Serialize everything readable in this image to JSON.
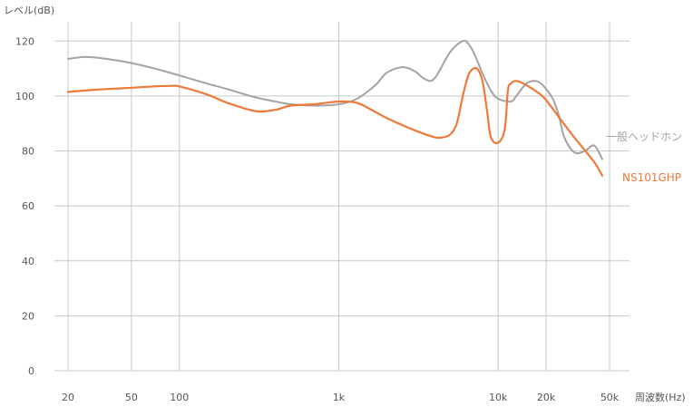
{
  "chart_data": {
    "type": "line",
    "title": "",
    "ylabel": "レベル(dB)",
    "xlabel": "周波数(Hz)",
    "ylim": [
      0,
      130
    ],
    "y_ticks": [
      0,
      20,
      40,
      60,
      80,
      100,
      120
    ],
    "y_tick_labels": [
      "0",
      "20",
      "40",
      "60",
      "80",
      "100",
      "120"
    ],
    "x_scale": "log",
    "xlim": [
      20,
      50000
    ],
    "x_ticks": [
      20,
      50,
      100,
      1000,
      10000,
      20000,
      50000
    ],
    "x_tick_labels": [
      "20",
      "50",
      "100",
      "1k",
      "10k",
      "20k",
      "50k"
    ],
    "x_gridlines": [
      20,
      50,
      100,
      1000,
      10000,
      20000,
      50000
    ],
    "grid": true,
    "legend": "inline labels at right end of lines",
    "series": [
      {
        "name": "一般ヘッドホン",
        "color": "#a3a3a3",
        "x": [
          20,
          25,
          30,
          40,
          50,
          70,
          100,
          150,
          200,
          300,
          400,
          500,
          700,
          1000,
          1300,
          1700,
          2000,
          2500,
          3000,
          3500,
          4000,
          5000,
          6000,
          6500,
          7000,
          7500,
          8000,
          9000,
          10000,
          12000,
          13000,
          15000,
          17000,
          19000,
          22000,
          24000,
          26000,
          30000,
          35000,
          40000,
          45000
        ],
        "values": [
          113.5,
          114.2,
          114,
          113,
          112,
          110,
          107.5,
          104.5,
          102.5,
          99.5,
          98,
          97,
          96.5,
          97,
          99,
          104,
          108.5,
          110.5,
          109,
          106,
          106.5,
          116,
          120,
          119,
          116,
          112,
          108,
          102,
          99,
          98,
          100,
          104.5,
          105.5,
          104,
          99,
          93,
          85,
          79.5,
          80,
          82,
          77
        ]
      },
      {
        "name": "NS101GHP",
        "color": "#ef7938",
        "x": [
          20,
          30,
          50,
          70,
          90,
          100,
          150,
          200,
          300,
          400,
          500,
          700,
          1000,
          1300,
          1600,
          2000,
          3000,
          4000,
          4500,
          5000,
          5500,
          6000,
          6500,
          7000,
          7500,
          8000,
          8500,
          9000,
          10000,
          11000,
          11500,
          12000,
          13000,
          15000,
          18000,
          20000,
          25000,
          30000,
          40000,
          45000
        ],
        "values": [
          101.5,
          102.3,
          103,
          103.5,
          103.7,
          103.5,
          100.5,
          97.5,
          94.5,
          95,
          96.5,
          97,
          98,
          97.5,
          95,
          92,
          87.5,
          85,
          85,
          86,
          90,
          100,
          107.5,
          110,
          109.5,
          105,
          95,
          85,
          83,
          88,
          102,
          104.5,
          105.5,
          104,
          101,
          98.5,
          91,
          85,
          76,
          71
        ]
      }
    ]
  }
}
